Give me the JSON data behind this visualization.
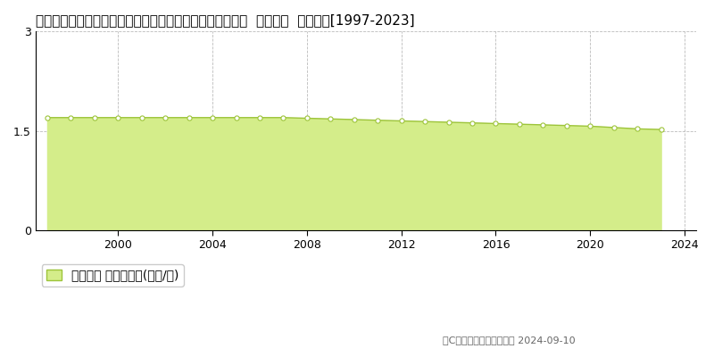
{
  "title": "宮崎県西諸県郡高原町大字西麓字原ノ出口２１０７番１外  地価公示  地価推移[1997-2023]",
  "years": [
    1997,
    1998,
    1999,
    2000,
    2001,
    2002,
    2003,
    2004,
    2005,
    2006,
    2007,
    2008,
    2009,
    2010,
    2011,
    2012,
    2013,
    2014,
    2015,
    2016,
    2017,
    2018,
    2019,
    2020,
    2021,
    2022,
    2023
  ],
  "values": [
    1.7,
    1.7,
    1.7,
    1.7,
    1.7,
    1.7,
    1.7,
    1.7,
    1.7,
    1.7,
    1.7,
    1.69,
    1.68,
    1.67,
    1.66,
    1.65,
    1.64,
    1.63,
    1.62,
    1.61,
    1.6,
    1.59,
    1.58,
    1.57,
    1.55,
    1.53,
    1.52
  ],
  "line_color": "#9dc43a",
  "fill_color": "#d4ed8a",
  "marker_facecolor": "#ffffff",
  "marker_edgecolor": "#9dc43a",
  "grid_color": "#bbbbbb",
  "ylim": [
    0,
    3
  ],
  "yticks": [
    0,
    1.5,
    3
  ],
  "xlim_left": 1996.5,
  "xlim_right": 2024.5,
  "xticks": [
    2000,
    2004,
    2008,
    2012,
    2016,
    2020,
    2024
  ],
  "legend_label": "地価公示 平均坪単価(万円/坪)",
  "copyright_text": "（C）土地価格ドットコム 2024-09-10",
  "bg_color": "#ffffff",
  "title_fontsize": 11,
  "tick_fontsize": 9,
  "legend_fontsize": 10,
  "copyright_fontsize": 8
}
